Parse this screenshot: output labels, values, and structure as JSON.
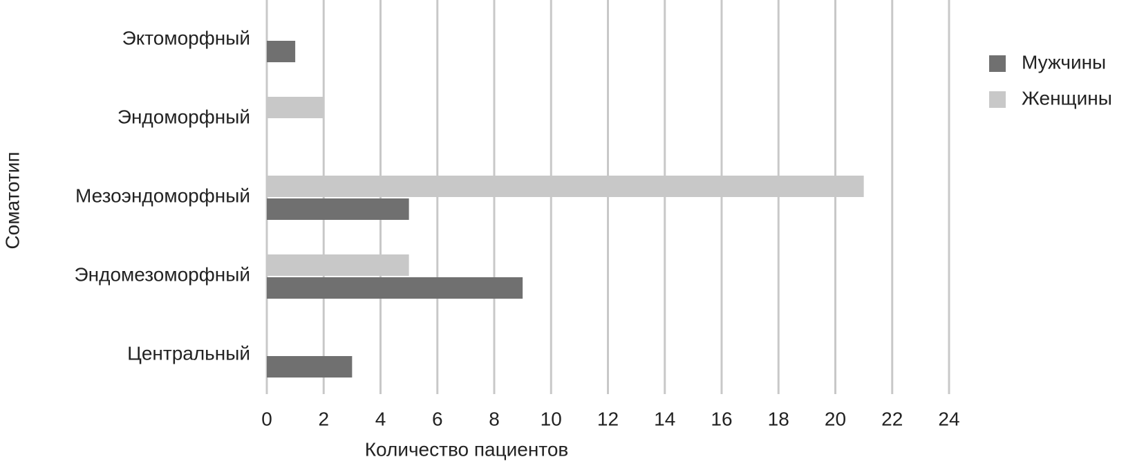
{
  "chart_data": {
    "type": "hbar",
    "x_label": "Количество пациентов",
    "y_label": "Соматотип",
    "categories": [
      "Эктоморфный",
      "Эндоморфный",
      "Мезоэндоморфный",
      "Эндомезоморфный",
      "Центральный"
    ],
    "series": [
      {
        "name": "Мужчины",
        "color": "#707070",
        "values": [
          1,
          null,
          5,
          9,
          3
        ]
      },
      {
        "name": "Женщины",
        "color": "#c8c8c8",
        "values": [
          null,
          2,
          21,
          5,
          null
        ]
      }
    ],
    "xlim": [
      0,
      24
    ],
    "xticks": [
      0,
      2,
      4,
      6,
      8,
      10,
      12,
      14,
      16,
      18,
      20,
      22,
      24
    ],
    "grid": true,
    "legend": "right"
  }
}
